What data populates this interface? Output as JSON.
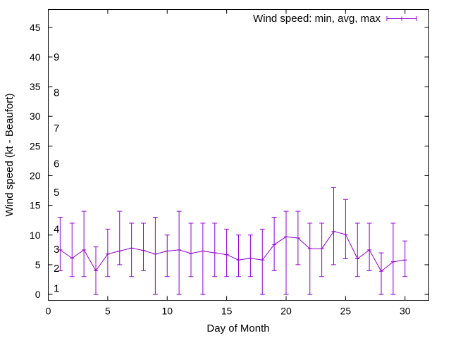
{
  "chart_data": {
    "type": "line",
    "xlabel": "Day of Month",
    "ylabel": "Wind speed (kt - Beaufort)",
    "xlim": [
      0,
      32
    ],
    "ylim": [
      -1,
      48
    ],
    "xticks": [
      0,
      5,
      10,
      15,
      20,
      25,
      30
    ],
    "yticks": [
      0,
      5,
      10,
      15,
      20,
      25,
      30,
      35,
      40,
      45
    ],
    "grid": false,
    "legend_position": "top-right",
    "color": "#9400d3",
    "series": [
      {
        "name": "Wind speed: min, avg, max",
        "x": [
          1,
          2,
          3,
          4,
          5,
          6,
          7,
          8,
          9,
          10,
          11,
          12,
          13,
          14,
          15,
          16,
          17,
          18,
          19,
          20,
          21,
          22,
          23,
          24,
          25,
          26,
          27,
          28,
          29,
          30
        ],
        "avg": [
          7.5,
          6.1,
          7.5,
          4.0,
          6.8,
          7.3,
          7.8,
          7.4,
          6.8,
          7.3,
          7.5,
          6.9,
          7.3,
          7.0,
          6.7,
          5.8,
          6.1,
          5.8,
          8.4,
          9.7,
          9.5,
          7.7,
          7.7,
          10.6,
          10.1,
          6.0,
          7.5,
          3.9,
          5.5,
          5.8
        ],
        "min": [
          4,
          3,
          3,
          0,
          3,
          5,
          3,
          4,
          0,
          3,
          0,
          3,
          0,
          3,
          3,
          3,
          3,
          0,
          4,
          0,
          5,
          0,
          3,
          5,
          6,
          3,
          4,
          0,
          0,
          3
        ],
        "max": [
          13,
          12,
          14,
          8,
          11,
          14,
          12,
          12,
          13,
          10,
          14,
          12,
          12,
          12,
          11,
          10,
          10,
          11,
          13,
          14,
          14,
          12,
          12,
          18,
          16,
          12,
          12,
          7,
          12,
          9
        ]
      }
    ],
    "annotations": [
      {
        "text": "1",
        "y": 1.0
      },
      {
        "text": "2",
        "y": 4.4
      },
      {
        "text": "3",
        "y": 7.6
      },
      {
        "text": "4",
        "y": 11.0
      },
      {
        "text": "5",
        "y": 17.2
      },
      {
        "text": "6",
        "y": 22.0
      },
      {
        "text": "7",
        "y": 28.0
      },
      {
        "text": "8",
        "y": 34.0
      },
      {
        "text": "9",
        "y": 40.0
      }
    ]
  }
}
